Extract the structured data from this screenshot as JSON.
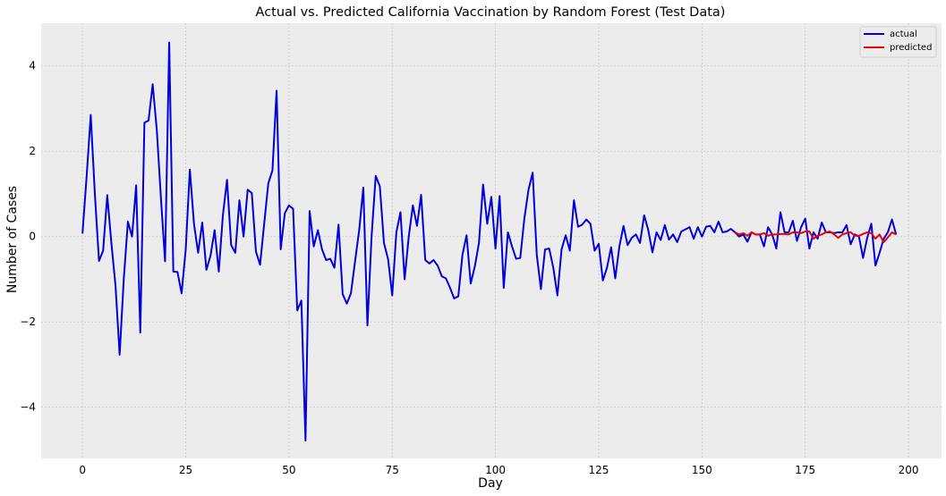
{
  "chart_data": {
    "type": "line",
    "title": "Actual vs. Predicted California Vaccination by Random Forest (Test Data)",
    "xlabel": "Day",
    "ylabel": "Number of Cases",
    "xlim": [
      -10,
      208
    ],
    "ylim": [
      -5.2,
      5.0
    ],
    "xticks": [
      0,
      25,
      50,
      75,
      100,
      125,
      150,
      175,
      200
    ],
    "yticks": [
      -4,
      -2,
      0,
      2,
      4
    ],
    "grid": true,
    "legend_position": "top-right",
    "series": [
      {
        "name": "actual",
        "color": "#0000dd",
        "x": [
          0,
          1,
          2,
          3,
          4,
          5,
          6,
          7,
          8,
          9,
          10,
          11,
          12,
          13,
          14,
          15,
          16,
          17,
          18,
          19,
          20,
          21,
          22,
          23,
          24,
          25,
          26,
          27,
          28,
          29,
          30,
          31,
          32,
          33,
          34,
          35,
          36,
          37,
          38,
          39,
          40,
          41,
          42,
          43,
          44,
          45,
          46,
          47,
          48,
          49,
          50,
          51,
          52,
          53,
          54,
          55,
          56,
          57,
          58,
          59,
          60,
          61,
          62,
          63,
          64,
          65,
          66,
          67,
          68,
          69,
          70,
          71,
          72,
          73,
          74,
          75,
          76,
          77,
          78,
          79,
          80,
          81,
          82,
          83,
          84,
          85,
          86,
          87,
          88,
          89,
          90,
          91,
          92,
          93,
          94,
          95,
          96,
          97,
          98,
          99,
          100,
          101,
          102,
          103,
          104,
          105,
          106,
          107,
          108,
          109,
          110,
          111,
          112,
          113,
          114,
          115,
          116,
          117,
          118,
          119,
          120,
          121,
          122,
          123,
          124,
          125,
          126,
          127,
          128,
          129,
          130,
          131,
          132,
          133,
          134,
          135,
          136,
          137,
          138,
          139,
          140,
          141,
          142,
          143,
          144,
          145,
          146,
          147,
          148,
          149,
          150,
          151,
          152,
          153,
          154,
          155,
          156,
          157,
          158,
          159,
          160,
          161,
          162,
          163,
          164,
          165,
          166,
          167,
          168,
          169,
          170,
          171,
          172,
          173,
          174,
          175,
          176,
          177,
          178,
          179,
          180,
          181,
          182,
          183,
          184,
          185,
          186,
          187,
          188,
          189,
          190,
          191,
          192,
          193,
          194,
          195,
          196,
          197
        ],
        "values": [
          0.07,
          1.4,
          2.85,
          1.0,
          -0.57,
          -0.33,
          0.97,
          -0.15,
          -1.15,
          -2.77,
          -1.0,
          0.35,
          0.0,
          1.2,
          -2.25,
          2.67,
          2.72,
          3.57,
          2.5,
          0.9,
          -0.58,
          4.55,
          -0.82,
          -0.83,
          -1.33,
          -0.3,
          1.57,
          0.3,
          -0.38,
          0.33,
          -0.78,
          -0.45,
          0.15,
          -0.82,
          0.5,
          1.33,
          -0.2,
          -0.38,
          0.85,
          0.0,
          1.1,
          1.02,
          -0.35,
          -0.66,
          0.3,
          1.25,
          1.55,
          3.42,
          -0.3,
          0.55,
          0.73,
          0.65,
          -1.73,
          -1.5,
          -4.78,
          0.6,
          -0.23,
          0.15,
          -0.3,
          -0.55,
          -0.52,
          -0.73,
          0.28,
          -1.35,
          -1.57,
          -1.33,
          -0.58,
          0.15,
          1.15,
          -2.08,
          0.0,
          1.42,
          1.18,
          -0.15,
          -0.53,
          -1.38,
          0.1,
          0.57,
          -1.0,
          0.0,
          0.73,
          0.25,
          0.98,
          -0.55,
          -0.63,
          -0.55,
          -0.68,
          -0.93,
          -0.98,
          -1.2,
          -1.45,
          -1.4,
          -0.43,
          0.03,
          -1.1,
          -0.7,
          -0.15,
          1.22,
          0.3,
          0.93,
          -0.28,
          0.95,
          -1.2,
          0.1,
          -0.23,
          -0.52,
          -0.5,
          0.43,
          1.1,
          1.5,
          -0.43,
          -1.23,
          -0.3,
          -0.28,
          -0.73,
          -1.38,
          -0.3,
          0.03,
          -0.33,
          0.85,
          0.23,
          0.28,
          0.4,
          0.3,
          -0.33,
          -0.17,
          -1.03,
          -0.73,
          -0.25,
          -0.98,
          -0.23,
          0.25,
          -0.2,
          -0.03,
          0.05,
          -0.15,
          0.5,
          0.15,
          -0.37,
          0.1,
          -0.08,
          0.27,
          -0.07,
          0.05,
          -0.13,
          0.12,
          0.17,
          0.22,
          -0.05,
          0.22,
          0.0,
          0.23,
          0.25,
          0.1,
          0.35,
          0.1,
          0.12,
          0.18,
          0.1,
          0.0,
          0.05,
          -0.12,
          0.1,
          0.05,
          0.05,
          -0.23,
          0.22,
          0.05,
          -0.28,
          0.57,
          0.1,
          0.1,
          0.37,
          -0.1,
          0.22,
          0.42,
          -0.28,
          0.1,
          -0.05,
          0.33,
          0.1,
          0.1,
          0.08,
          0.1,
          0.1,
          0.27,
          -0.18,
          0.05,
          0.0,
          -0.5,
          -0.03,
          0.3,
          -0.68,
          -0.38,
          -0.05,
          0.1,
          0.4,
          0.05
        ]
      },
      {
        "name": "predicted",
        "color": "#ee0000",
        "x": [
          158,
          159,
          160,
          161,
          162,
          163,
          164,
          165,
          166,
          167,
          168,
          169,
          170,
          171,
          172,
          173,
          174,
          175,
          176,
          177,
          178,
          179,
          180,
          181,
          182,
          183,
          184,
          185,
          186,
          187,
          188,
          189,
          190,
          191,
          192,
          193,
          194,
          195,
          196,
          197
        ],
        "values": [
          0.1,
          0.05,
          0.08,
          0.02,
          0.1,
          0.05,
          0.05,
          0.08,
          0.02,
          0.05,
          0.05,
          0.06,
          0.06,
          0.05,
          0.1,
          0.1,
          0.08,
          0.12,
          0.12,
          -0.05,
          0.02,
          0.05,
          0.1,
          0.12,
          0.05,
          -0.03,
          0.05,
          0.08,
          0.1,
          0.02,
          0.02,
          0.06,
          0.1,
          0.08,
          -0.05,
          0.05,
          -0.13,
          -0.02,
          0.1,
          0.05
        ]
      }
    ]
  }
}
